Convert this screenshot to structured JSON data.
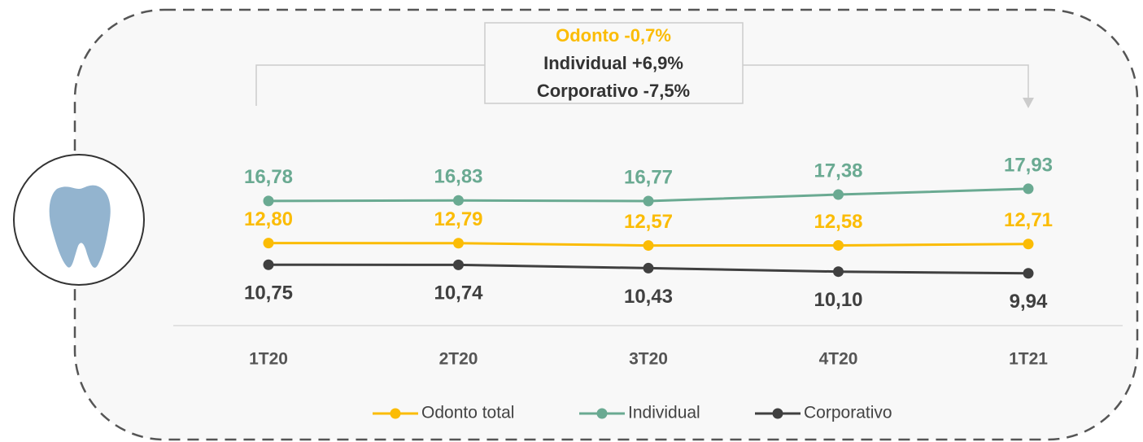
{
  "chart_data": {
    "type": "line",
    "annotations": [
      "Odonto -0,7%",
      "Individual +6,9%",
      "Corporativo -7,5%"
    ],
    "categories": [
      "1T20",
      "2T20",
      "3T20",
      "4T20",
      "1T21"
    ],
    "series": [
      {
        "name": "Odonto total",
        "color": "#fbbc05",
        "values": [
          12.8,
          12.79,
          12.57,
          12.58,
          12.71
        ],
        "value_labels": [
          "12,80",
          "12,79",
          "12,57",
          "12,58",
          "12,71"
        ]
      },
      {
        "name": "Individual",
        "color": "#6aaa92",
        "values": [
          16.78,
          16.83,
          16.77,
          17.38,
          17.93
        ],
        "value_labels": [
          "16,78",
          "16,83",
          "16,77",
          "17,38",
          "17,93"
        ]
      },
      {
        "name": "Corporativo",
        "color": "#404040",
        "values": [
          10.75,
          10.74,
          10.43,
          10.1,
          9.94
        ],
        "value_labels": [
          "10,75",
          "10,74",
          "10,43",
          "10,10",
          "9,94"
        ]
      }
    ],
    "ylim": [
      5,
      20
    ]
  }
}
